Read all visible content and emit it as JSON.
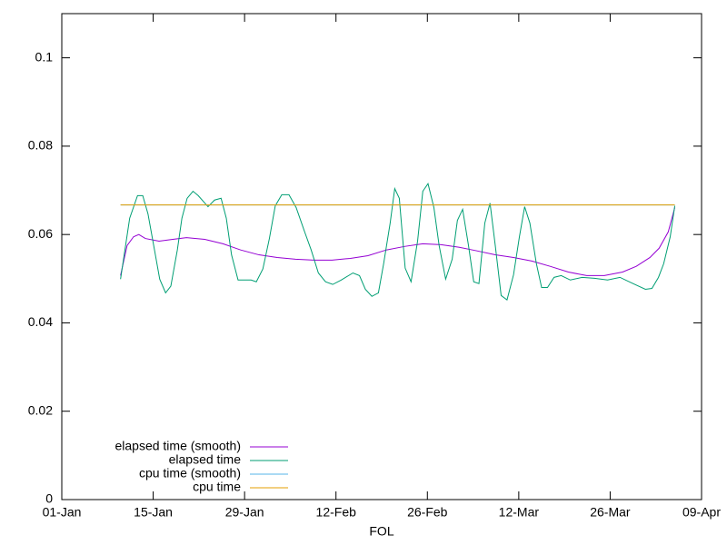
{
  "chart_data": {
    "type": "line",
    "xlabel": "FOL",
    "xlim": [
      0,
      98
    ],
    "xticks": [
      {
        "value": 0,
        "label": "01-Jan"
      },
      {
        "value": 14,
        "label": "15-Jan"
      },
      {
        "value": 28,
        "label": "29-Jan"
      },
      {
        "value": 42,
        "label": "12-Feb"
      },
      {
        "value": 56,
        "label": "26-Feb"
      },
      {
        "value": 70,
        "label": "12-Mar"
      },
      {
        "value": 84,
        "label": "26-Mar"
      },
      {
        "value": 98,
        "label": "09-Apr"
      }
    ],
    "ylim": [
      0,
      0.11
    ],
    "yticks": [
      0,
      0.02,
      0.04,
      0.06,
      0.08,
      0.1
    ],
    "grid": false,
    "legend": "bottom-left",
    "series": [
      {
        "name": "elapsed time (smooth)",
        "color": "#9400d3",
        "x": [
          9,
          10,
          11,
          11.8,
          12.8,
          14.9,
          17,
          19.1,
          21.9,
          24.7,
          27.4,
          30.2,
          33,
          35.8,
          38.6,
          41.4,
          44.2,
          46.9,
          49.7,
          52.5,
          55.3,
          58.1,
          60.9,
          63.6,
          66.4,
          69.2,
          72,
          74.8,
          77.6,
          80.4,
          83.1,
          85.9,
          88,
          90.1,
          91.5,
          92.9,
          93.9
        ],
        "values": [
          0.0507,
          0.0575,
          0.0595,
          0.06,
          0.0591,
          0.0585,
          0.0589,
          0.0593,
          0.0589,
          0.0579,
          0.0565,
          0.0554,
          0.0548,
          0.0544,
          0.0542,
          0.0542,
          0.0546,
          0.0552,
          0.0565,
          0.0573,
          0.0579,
          0.0577,
          0.0571,
          0.0563,
          0.0554,
          0.0548,
          0.054,
          0.0528,
          0.0515,
          0.0507,
          0.0507,
          0.0515,
          0.0528,
          0.0548,
          0.0569,
          0.0606,
          0.0661
        ]
      },
      {
        "name": "elapsed time",
        "color": "#009e73",
        "x": [
          9,
          10.4,
          11.6,
          12.4,
          13.2,
          14.2,
          15,
          15.9,
          16.7,
          17.7,
          18.4,
          19.2,
          20.1,
          20.9,
          22.4,
          23.4,
          24.4,
          25.2,
          26,
          27,
          29,
          29.8,
          30.8,
          31.8,
          32.7,
          33.7,
          34.8,
          35.9,
          37.2,
          38.2,
          39.3,
          40.4,
          41.5,
          42.8,
          44.6,
          45.6,
          46.5,
          47.5,
          48.5,
          49.3,
          50.3,
          51,
          51.7,
          52.6,
          53.5,
          54.5,
          55.3,
          56.1,
          57,
          57.8,
          58.8,
          59.8,
          60.6,
          61.4,
          62.3,
          63.1,
          63.9,
          64.8,
          65.6,
          66.4,
          67.3,
          68.2,
          69.2,
          70.1,
          70.9,
          71.7,
          72.7,
          73.5,
          74.4,
          75.4,
          76.5,
          77.9,
          79.7,
          81.6,
          83.6,
          85.5,
          87.5,
          89.4,
          90.4,
          91.4,
          92.2,
          93.2,
          93.9
        ],
        "values": [
          0.0499,
          0.0637,
          0.0688,
          0.0688,
          0.0647,
          0.0565,
          0.0499,
          0.0468,
          0.0483,
          0.0565,
          0.0637,
          0.0682,
          0.0698,
          0.0688,
          0.0663,
          0.0678,
          0.0682,
          0.0637,
          0.0554,
          0.0497,
          0.0497,
          0.0493,
          0.0522,
          0.0591,
          0.0665,
          0.069,
          0.069,
          0.0661,
          0.0606,
          0.0565,
          0.0513,
          0.0493,
          0.0487,
          0.0497,
          0.0513,
          0.0507,
          0.0476,
          0.046,
          0.0468,
          0.0534,
          0.0626,
          0.0704,
          0.0682,
          0.0524,
          0.0493,
          0.0585,
          0.0698,
          0.0715,
          0.0661,
          0.0575,
          0.0499,
          0.0544,
          0.0632,
          0.0657,
          0.0575,
          0.0493,
          0.0489,
          0.0626,
          0.0671,
          0.0575,
          0.0462,
          0.0452,
          0.0509,
          0.0595,
          0.0663,
          0.0626,
          0.0534,
          0.048,
          0.048,
          0.0503,
          0.0507,
          0.0497,
          0.0503,
          0.0501,
          0.0497,
          0.0503,
          0.0489,
          0.0476,
          0.0478,
          0.0503,
          0.0534,
          0.0595,
          0.0665
        ]
      },
      {
        "name": "cpu time (smooth)",
        "color": "#56b4e9",
        "x": [
          9,
          93.9
        ],
        "values": [
          0.0667,
          0.0667
        ]
      },
      {
        "name": "cpu time",
        "color": "#e69f00",
        "x": [
          9,
          93.9
        ],
        "values": [
          0.0667,
          0.0667
        ]
      }
    ]
  }
}
